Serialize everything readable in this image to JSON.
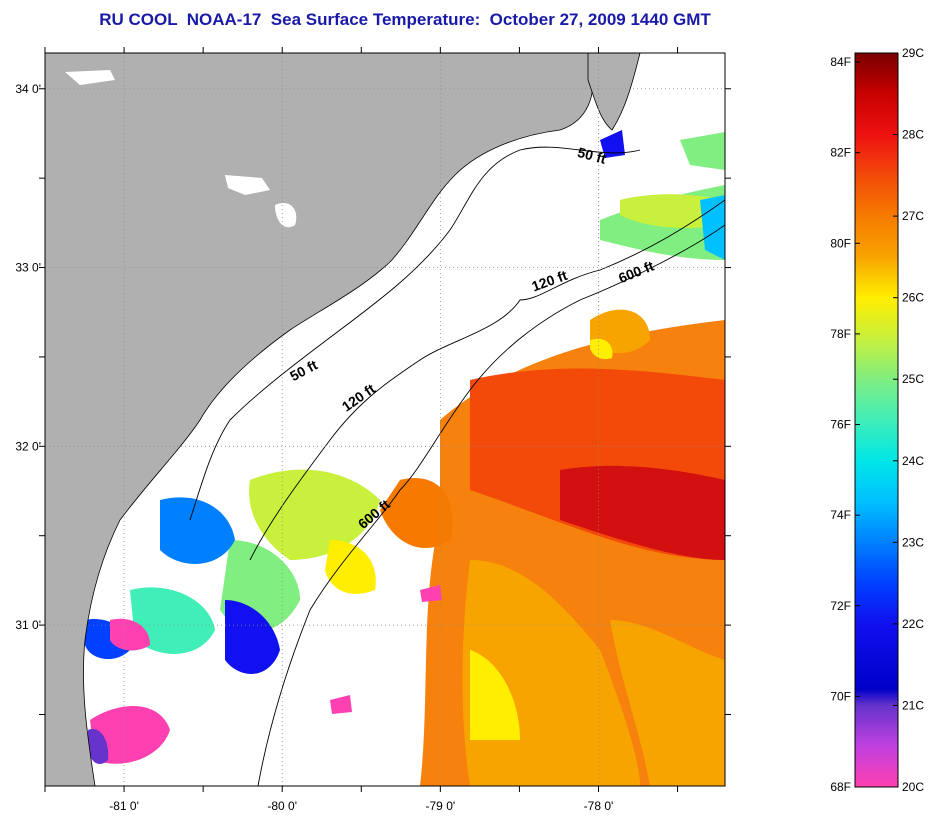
{
  "title": "RU COOL  NOAA-17  Sea Surface Temperature:  October 27, 2009 1440 GMT",
  "colors": {
    "land": "#b0b0b0",
    "water_no_data": "#ffffff",
    "grid": "#8c8c8c",
    "coast": "#000000"
  },
  "map": {
    "lon_range": [
      -81.5,
      -77.2
    ],
    "lat_range": [
      30.1,
      34.2
    ],
    "lon_ticks": [
      {
        "lon": -81,
        "label": "-81 0'"
      },
      {
        "lon": -80,
        "label": "-80 0'"
      },
      {
        "lon": -79,
        "label": "-79 0'"
      },
      {
        "lon": -78,
        "label": "-78 0'"
      }
    ],
    "lat_ticks": [
      {
        "lat": 34,
        "label": "34 0'"
      },
      {
        "lat": 33,
        "label": "33 0'"
      },
      {
        "lat": 32,
        "label": "32 0'"
      },
      {
        "lat": 31,
        "label": "31 0'"
      }
    ],
    "depth_labels": [
      {
        "text": "50 ft",
        "lon": -78.05,
        "lat": 33.6,
        "angle": 15
      },
      {
        "text": "50 ft",
        "lon": -79.85,
        "lat": 32.4,
        "angle": -28
      },
      {
        "text": "120 ft",
        "lon": -78.3,
        "lat": 32.9,
        "angle": -20
      },
      {
        "text": "120 ft",
        "lon": -79.5,
        "lat": 32.25,
        "angle": -35
      },
      {
        "text": "600 ft",
        "lon": -77.75,
        "lat": 32.95,
        "angle": -22
      },
      {
        "text": "600 ft",
        "lon": -79.4,
        "lat": 31.6,
        "angle": -40
      }
    ]
  },
  "colorbar": {
    "f_labels": [
      "84F",
      "82F",
      "80F",
      "78F",
      "76F",
      "74F",
      "72F",
      "70F",
      "68F"
    ],
    "c_labels": [
      "29C",
      "28C",
      "27C",
      "26C",
      "25C",
      "24C",
      "23C",
      "22C",
      "21C",
      "20C"
    ],
    "stops": [
      {
        "c": 29,
        "color": "#7a0000"
      },
      {
        "c": 28.5,
        "color": "#c80000"
      },
      {
        "c": 28,
        "color": "#ee1111"
      },
      {
        "c": 27.5,
        "color": "#f34a0a"
      },
      {
        "c": 27,
        "color": "#f67a00"
      },
      {
        "c": 26.5,
        "color": "#f8a400"
      },
      {
        "c": 26,
        "color": "#ffee00"
      },
      {
        "c": 25.5,
        "color": "#c8f03c"
      },
      {
        "c": 25,
        "color": "#80ee80"
      },
      {
        "c": 24.5,
        "color": "#40eeb8"
      },
      {
        "c": 24,
        "color": "#00e6e6"
      },
      {
        "c": 23.5,
        "color": "#00c0ff"
      },
      {
        "c": 23,
        "color": "#0080ff"
      },
      {
        "c": 22.5,
        "color": "#0040ff"
      },
      {
        "c": 22,
        "color": "#1010f0"
      },
      {
        "c": 21.2,
        "color": "#0000c8"
      },
      {
        "c": 21,
        "color": "#6633cc"
      },
      {
        "c": 20.5,
        "color": "#c040e0"
      },
      {
        "c": 20,
        "color": "#ff40b0"
      }
    ]
  }
}
